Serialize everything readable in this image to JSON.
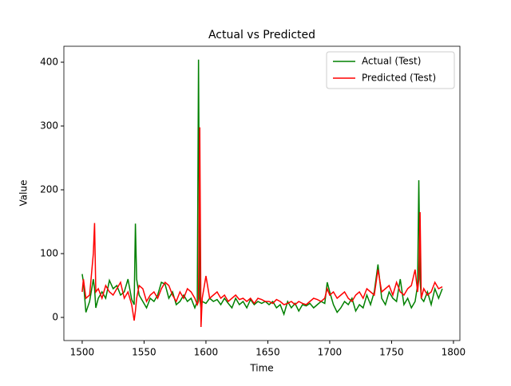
{
  "chart_data": {
    "type": "line",
    "title": "Actual vs Predicted",
    "xlabel": "Time",
    "ylabel": "Value",
    "x": [
      1500,
      1501,
      1503,
      1506,
      1509,
      1510,
      1511,
      1513,
      1516,
      1519,
      1522,
      1525,
      1528,
      1531,
      1534,
      1537,
      1540,
      1542,
      1543,
      1544,
      1546,
      1549,
      1552,
      1555,
      1558,
      1561,
      1564,
      1567,
      1570,
      1573,
      1576,
      1579,
      1582,
      1585,
      1588,
      1591,
      1593,
      1594,
      1595,
      1596,
      1597,
      1600,
      1603,
      1606,
      1609,
      1612,
      1615,
      1618,
      1621,
      1624,
      1627,
      1630,
      1633,
      1636,
      1639,
      1642,
      1645,
      1648,
      1651,
      1654,
      1657,
      1660,
      1663,
      1666,
      1669,
      1672,
      1675,
      1678,
      1681,
      1684,
      1687,
      1690,
      1693,
      1696,
      1698,
      1700,
      1703,
      1706,
      1709,
      1712,
      1715,
      1718,
      1721,
      1724,
      1727,
      1730,
      1733,
      1736,
      1739,
      1742,
      1745,
      1748,
      1751,
      1754,
      1757,
      1760,
      1763,
      1766,
      1769,
      1771,
      1772,
      1773,
      1774,
      1776,
      1779,
      1782,
      1785,
      1788,
      1791
    ],
    "series": [
      {
        "name": "Actual (Test)",
        "color": "#008000",
        "values": [
          68,
          55,
          8,
          25,
          60,
          45,
          15,
          30,
          40,
          30,
          58,
          45,
          50,
          35,
          40,
          60,
          28,
          20,
          147,
          60,
          35,
          25,
          15,
          30,
          25,
          35,
          55,
          52,
          30,
          40,
          20,
          25,
          35,
          25,
          30,
          15,
          25,
          404,
          30,
          15,
          25,
          22,
          30,
          25,
          28,
          20,
          30,
          22,
          15,
          30,
          20,
          25,
          15,
          28,
          20,
          25,
          22,
          25,
          20,
          25,
          15,
          20,
          5,
          25,
          15,
          22,
          10,
          20,
          18,
          22,
          15,
          20,
          25,
          22,
          55,
          40,
          20,
          8,
          15,
          25,
          20,
          30,
          10,
          20,
          15,
          35,
          20,
          40,
          83,
          30,
          20,
          40,
          30,
          25,
          60,
          20,
          30,
          15,
          25,
          50,
          215,
          60,
          30,
          25,
          40,
          20,
          45,
          30,
          45
        ]
      },
      {
        "name": "Predicted (Test)",
        "color": "#ff0000",
        "values": [
          40,
          60,
          30,
          35,
          100,
          148,
          40,
          45,
          30,
          50,
          40,
          35,
          45,
          55,
          30,
          40,
          20,
          -5,
          10,
          30,
          50,
          45,
          25,
          35,
          40,
          30,
          45,
          55,
          50,
          35,
          25,
          40,
          30,
          45,
          40,
          30,
          20,
          25,
          298,
          -15,
          30,
          65,
          30,
          35,
          40,
          30,
          35,
          25,
          30,
          35,
          28,
          30,
          25,
          30,
          22,
          30,
          28,
          25,
          25,
          22,
          28,
          25,
          20,
          22,
          25,
          20,
          25,
          22,
          20,
          25,
          30,
          28,
          25,
          30,
          45,
          35,
          40,
          30,
          35,
          40,
          30,
          25,
          35,
          40,
          30,
          45,
          40,
          35,
          75,
          40,
          45,
          50,
          35,
          55,
          40,
          35,
          45,
          50,
          75,
          40,
          60,
          165,
          30,
          45,
          35,
          40,
          55,
          45,
          48
        ]
      }
    ],
    "xlim": [
      1485.2,
      1805.2
    ],
    "ylim": [
      -36.25,
      425
    ],
    "xticks": [
      1500,
      1550,
      1600,
      1650,
      1700,
      1750,
      1800
    ],
    "yticks": [
      0,
      100,
      200,
      300,
      400
    ],
    "legend": "upper right"
  }
}
